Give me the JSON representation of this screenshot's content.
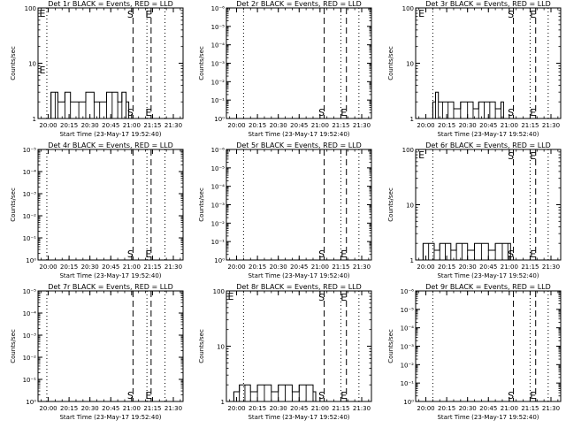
{
  "layout": {
    "columns": 3,
    "rows": 3
  },
  "axis": {
    "x_ticks": [
      "20:00",
      "20:15",
      "20:30",
      "20:45",
      "21:00",
      "21:15",
      "21:30"
    ],
    "x_label": "Start Time (23-May-17 19:52:40)",
    "y_label": "Counts/sec"
  },
  "markers": {
    "start_label": "S",
    "end_label": "E"
  },
  "colors": {
    "background": "#ffffff",
    "axes": "#000000",
    "events": "#000000",
    "lld": "#ff0000"
  },
  "chart_data": [
    {
      "type": "line",
      "title": "Det 1r BLACK = Events, RED = LLD",
      "x_range": [
        "19:52:40",
        "21:37"
      ],
      "y_scale": "log",
      "ylim": [
        1,
        100
      ],
      "y_ticks": [
        "1",
        "10",
        "100"
      ],
      "series": [
        {
          "name": "Events",
          "x": [
            "20:02",
            "20:05",
            "20:07",
            "20:12",
            "20:16",
            "20:22",
            "20:27",
            "20:33",
            "20:37",
            "20:42",
            "20:46",
            "20:50",
            "20:53",
            "20:56"
          ],
          "y": [
            3,
            3,
            2,
            3,
            2,
            2,
            3,
            2,
            2,
            3,
            3,
            2,
            3,
            2
          ]
        }
      ],
      "vlines": [
        {
          "time": "19:59",
          "style": "dotted"
        },
        {
          "time": "21:01",
          "style": "dashed",
          "label": "S"
        },
        {
          "time": "21:11",
          "style": "dotted"
        },
        {
          "time": "21:14",
          "style": "dashed",
          "label": "E"
        },
        {
          "time": "21:24",
          "style": "dotted"
        }
      ],
      "letters": [
        {
          "text": "E",
          "time": "19:53",
          "value": 80
        }
      ]
    },
    {
      "type": "line",
      "title": "Det 2r BLACK = Events, RED = LLD",
      "x_range": [
        "19:52:40",
        "21:37"
      ],
      "y_scale": "log",
      "ylim": [
        0.001,
        0.01
      ],
      "y_ticks": [
        "10⁰",
        "10⁻¹",
        "10⁻²",
        "10⁻³",
        "10⁻⁴",
        "10⁻⁵",
        "10⁻⁶"
      ],
      "series": [],
      "vlines": [
        {
          "time": "20:05",
          "style": "dotted"
        },
        {
          "time": "21:03",
          "style": "dashed",
          "label": "S"
        },
        {
          "time": "21:15",
          "style": "dotted"
        },
        {
          "time": "21:19",
          "style": "dashed",
          "label": "E"
        },
        {
          "time": "21:28",
          "style": "dotted"
        }
      ],
      "letters": [
        {
          "text": "E",
          "time": "19:54",
          "value": 1
        }
      ]
    },
    {
      "type": "line",
      "title": "Det 3r BLACK = Events, RED = LLD",
      "x_range": [
        "19:52:40",
        "21:37"
      ],
      "y_scale": "log",
      "ylim": [
        1,
        100
      ],
      "y_ticks": [
        "1",
        "10",
        "100"
      ],
      "series": [
        {
          "name": "Events",
          "x": [
            "20:05",
            "20:07",
            "20:09",
            "20:12",
            "20:16",
            "20:20",
            "20:25",
            "20:30",
            "20:34",
            "20:38",
            "20:42",
            "20:46",
            "20:50",
            "20:54"
          ],
          "y": [
            2,
            3,
            2,
            2,
            2,
            1.5,
            2,
            2,
            1.5,
            2,
            2,
            2,
            1.5,
            2
          ]
        }
      ],
      "vlines": [
        {
          "time": "20:05",
          "style": "dotted"
        },
        {
          "time": "21:03",
          "style": "dashed",
          "label": "S"
        },
        {
          "time": "21:15",
          "style": "dotted"
        },
        {
          "time": "21:19",
          "style": "dashed",
          "label": "E"
        },
        {
          "time": "21:28",
          "style": "dotted"
        }
      ],
      "letters": [
        {
          "text": "E",
          "time": "19:54",
          "value": 80
        }
      ]
    },
    {
      "type": "line",
      "title": "Det 4r BLACK = Events, RED = LLD",
      "x_range": [
        "19:52:40",
        "21:37"
      ],
      "y_scale": "log",
      "ylim": [
        0.001,
        0.01
      ],
      "y_ticks": [
        "10⁰",
        "10⁻¹",
        "10⁻²",
        "10⁻³",
        "10⁻⁴",
        "10⁻⁵"
      ],
      "series": [],
      "vlines": [
        {
          "time": "19:59",
          "style": "dotted"
        },
        {
          "time": "21:01",
          "style": "dashed",
          "label": "S"
        },
        {
          "time": "21:11",
          "style": "dotted"
        },
        {
          "time": "21:14",
          "style": "dashed",
          "label": "E"
        },
        {
          "time": "21:24",
          "style": "dotted"
        }
      ],
      "letters": []
    },
    {
      "type": "line",
      "title": "Det 5r BLACK = Events, RED = LLD",
      "x_range": [
        "19:52:40",
        "21:37"
      ],
      "y_scale": "log",
      "ylim": [
        0.001,
        0.01
      ],
      "y_ticks": [
        "10⁰",
        "10⁻¹",
        "10⁻²",
        "10⁻³",
        "10⁻⁴",
        "10⁻⁵",
        "10⁻⁶"
      ],
      "series": [],
      "vlines": [
        {
          "time": "20:05",
          "style": "dotted"
        },
        {
          "time": "21:03",
          "style": "dashed",
          "label": "S"
        },
        {
          "time": "21:15",
          "style": "dotted"
        },
        {
          "time": "21:19",
          "style": "dashed",
          "label": "E"
        },
        {
          "time": "21:28",
          "style": "dotted"
        }
      ],
      "letters": []
    },
    {
      "type": "line",
      "title": "Det 6r BLACK = Events, RED = LLD",
      "x_range": [
        "19:52:40",
        "21:37"
      ],
      "y_scale": "log",
      "ylim": [
        1,
        100
      ],
      "y_ticks": [
        "1",
        "10",
        "100"
      ],
      "series": [
        {
          "name": "Events",
          "x": [
            "19:58",
            "20:02",
            "20:06",
            "20:10",
            "20:14",
            "20:18",
            "20:22",
            "20:26",
            "20:30",
            "20:35",
            "20:40",
            "20:45",
            "20:50",
            "20:55",
            "20:59"
          ],
          "y": [
            2,
            2,
            1.5,
            2,
            2,
            1.5,
            2,
            2,
            1.5,
            2,
            2,
            1.5,
            2,
            2,
            2
          ]
        }
      ],
      "vlines": [
        {
          "time": "20:05",
          "style": "dotted"
        },
        {
          "time": "21:03",
          "style": "dashed",
          "label": "S"
        },
        {
          "time": "21:15",
          "style": "dotted"
        },
        {
          "time": "21:19",
          "style": "dashed",
          "label": "E"
        },
        {
          "time": "21:28",
          "style": "dotted"
        }
      ],
      "letters": [
        {
          "text": "E",
          "time": "19:54",
          "value": 80
        }
      ]
    },
    {
      "type": "line",
      "title": "Det 7r BLACK = Events, RED = LLD",
      "x_range": [
        "19:52:40",
        "21:37"
      ],
      "y_scale": "log",
      "ylim": [
        0.001,
        0.01
      ],
      "y_ticks": [
        "10⁰",
        "10⁻¹",
        "10⁻²",
        "10⁻³",
        "10⁻⁴",
        "10⁻⁵"
      ],
      "series": [],
      "vlines": [
        {
          "time": "19:59",
          "style": "dotted"
        },
        {
          "time": "21:01",
          "style": "dashed",
          "label": "S"
        },
        {
          "time": "21:11",
          "style": "dotted"
        },
        {
          "time": "21:14",
          "style": "dashed",
          "label": "E"
        },
        {
          "time": "21:24",
          "style": "dotted"
        }
      ],
      "letters": [
        {
          "text": "E",
          "time": "19:53",
          "value": 1
        }
      ]
    },
    {
      "type": "line",
      "title": "Det 8r BLACK = Events, RED = LLD",
      "x_range": [
        "19:52:40",
        "21:37"
      ],
      "y_scale": "log",
      "ylim": [
        1,
        100
      ],
      "y_ticks": [
        "1",
        "10",
        "100"
      ],
      "series": [
        {
          "name": "Events",
          "x": [
            "19:58",
            "20:02",
            "20:06",
            "20:10",
            "20:15",
            "20:20",
            "20:25",
            "20:30",
            "20:35",
            "20:40",
            "20:45",
            "20:50",
            "20:55"
          ],
          "y": [
            1.5,
            2,
            2,
            1.5,
            2,
            2,
            1.5,
            2,
            2,
            1.5,
            2,
            2,
            1.5
          ]
        }
      ],
      "vlines": [
        {
          "time": "20:05",
          "style": "dotted"
        },
        {
          "time": "21:03",
          "style": "dashed",
          "label": "S"
        },
        {
          "time": "21:15",
          "style": "dotted"
        },
        {
          "time": "21:19",
          "style": "dashed",
          "label": "E"
        },
        {
          "time": "21:28",
          "style": "dotted"
        }
      ],
      "letters": [
        {
          "text": "E",
          "time": "19:53",
          "value": 80
        }
      ]
    },
    {
      "type": "line",
      "title": "Det 9r BLACK = Events, RED = LLD",
      "x_range": [
        "19:52:40",
        "21:37"
      ],
      "y_scale": "log",
      "ylim": [
        0.001,
        0.01
      ],
      "y_ticks": [
        "10⁰",
        "10⁻¹",
        "10⁻²",
        "10⁻³",
        "10⁻⁴",
        "10⁻⁵",
        "10⁻⁶"
      ],
      "series": [],
      "vlines": [
        {
          "time": "20:05",
          "style": "dotted"
        },
        {
          "time": "21:03",
          "style": "dashed",
          "label": "S"
        },
        {
          "time": "21:15",
          "style": "dotted"
        },
        {
          "time": "21:19",
          "style": "dashed",
          "label": "E"
        },
        {
          "time": "21:28",
          "style": "dotted"
        }
      ],
      "letters": []
    }
  ]
}
